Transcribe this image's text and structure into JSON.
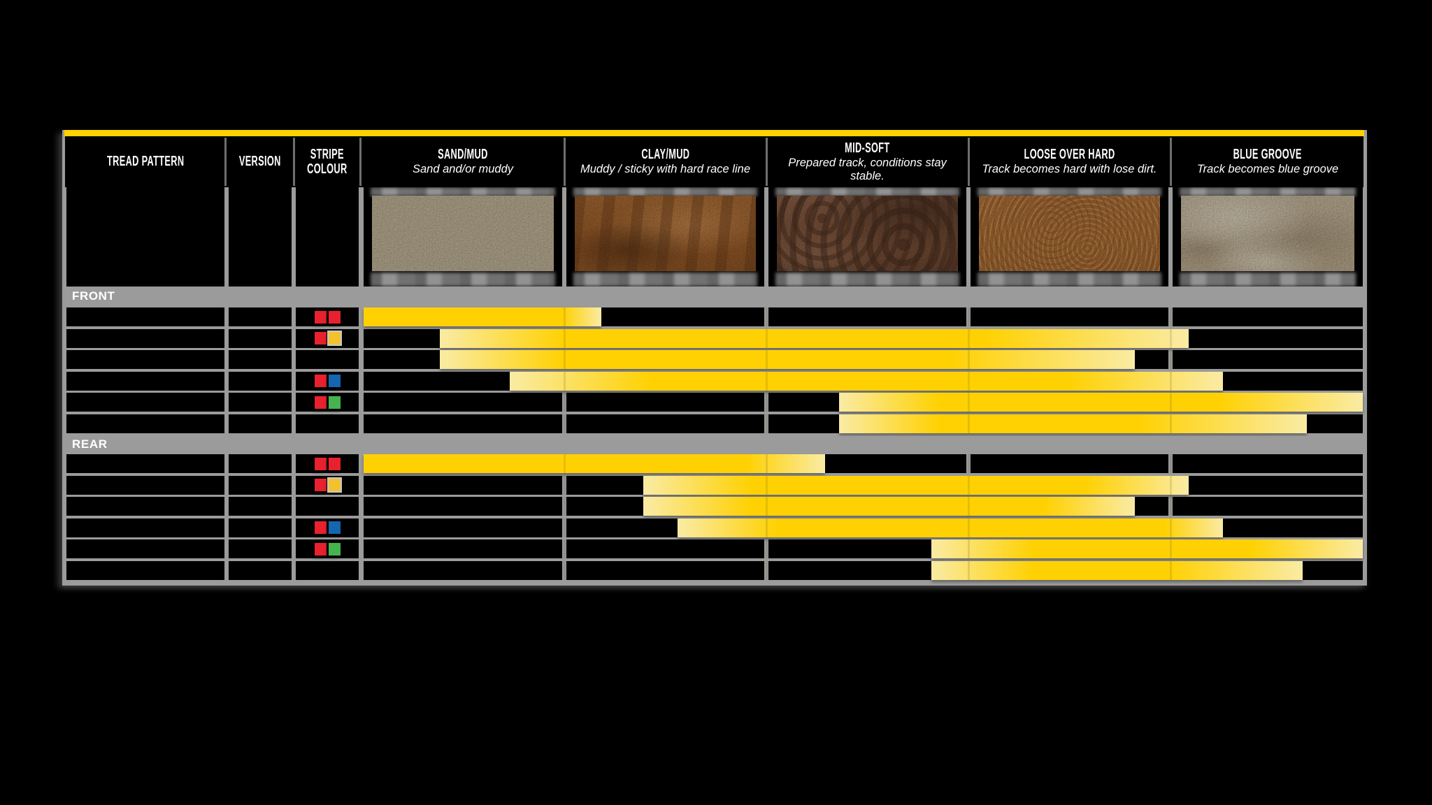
{
  "page": {
    "background": "#000000"
  },
  "board": {
    "accent_color": "#FFD200",
    "grid_color": "#9B9B9B",
    "header": {
      "columns": [
        {
          "id": "tread",
          "title": "TREAD PATTERN",
          "subtitle": ""
        },
        {
          "id": "version",
          "title": "VERSION",
          "subtitle": ""
        },
        {
          "id": "stripe",
          "title": "STRIPE\nCOLOUR",
          "subtitle": ""
        },
        {
          "id": "sand",
          "title": "SAND/MUD",
          "subtitle": "Sand and/or muddy"
        },
        {
          "id": "clay",
          "title": "CLAY/MUD",
          "subtitle": "Muddy / sticky with hard race line"
        },
        {
          "id": "mid",
          "title": "MID-SOFT",
          "subtitle": "Prepared track, conditions stay stable."
        },
        {
          "id": "loose",
          "title": "LOOSE OVER HARD",
          "subtitle": "Track becomes hard with lose dirt."
        },
        {
          "id": "blue",
          "title": "BLUE GROOVE",
          "subtitle": "Track becomes blue groove"
        }
      ]
    },
    "terrain_photos": [
      {
        "id": "sand",
        "name": "sand-dunes-photo",
        "palette": [
          "#C8BBA0",
          "#8D8066",
          "#E9E0CB"
        ]
      },
      {
        "id": "clay",
        "name": "muddy-clay-ruts-photo",
        "palette": [
          "#A4632D",
          "#6E3E1B",
          "#C98A4E"
        ]
      },
      {
        "id": "mid",
        "name": "soft-soil-clumps-photo",
        "palette": [
          "#8A5F46",
          "#5E3E2C",
          "#A87C5E"
        ]
      },
      {
        "id": "loose",
        "name": "loose-dirt-gravel-photo",
        "palette": [
          "#B5763C",
          "#8A4F22",
          "#D9A368"
        ]
      },
      {
        "id": "blue",
        "name": "hardpack-blue-groove-photo",
        "palette": [
          "#C4B59B",
          "#DCD2BC",
          "#9F8F74"
        ]
      }
    ],
    "stripe_palette": {
      "red": "#E8212E",
      "yellow": "#F2C12E",
      "blue": "#1566B0",
      "green": "#45B44E"
    },
    "bar_colors": {
      "solid": "#FFD103",
      "pale": "#FAEBA4"
    }
  },
  "chart_data": {
    "type": "bar",
    "subtype": "horizontal-range-bars (tyre suitability across track conditions)",
    "title": "",
    "axis_categories": [
      "SAND/MUD",
      "CLAY/MUD",
      "MID-SOFT",
      "LOOSE OVER HARD",
      "BLUE GROOVE"
    ],
    "units": "terrain-column index: 0 = left edge of SAND/MUD, 5 = right edge of BLUE GROOVE; full_from/full_to mark the solid-yellow span, start/end include the faded tails",
    "legend_position": "none",
    "grid": true,
    "sections": [
      {
        "label": "FRONT",
        "rows": [
          {
            "stripe_colours": [
              "red",
              "red"
            ],
            "range": {
              "start": 0.0,
              "full_from": 0.0,
              "full_to": 1.0,
              "end": 1.19
            }
          },
          {
            "stripe_colours": [
              "red",
              "yellow"
            ],
            "range": {
              "start": 0.38,
              "full_from": 1.0,
              "full_to": 3.11,
              "end": 4.13
            }
          },
          {
            "stripe_colours": [],
            "range": {
              "start": 0.38,
              "full_from": 1.0,
              "full_to": 2.94,
              "end": 3.86
            }
          },
          {
            "stripe_colours": [
              "red",
              "blue"
            ],
            "range": {
              "start": 0.73,
              "full_from": 1.44,
              "full_to": 3.53,
              "end": 4.3
            }
          },
          {
            "stripe_colours": [
              "red",
              "green"
            ],
            "range": {
              "start": 2.38,
              "full_from": 2.88,
              "full_to": 4.28,
              "end": 5.0
            }
          },
          {
            "stripe_colours": [],
            "range": {
              "start": 2.38,
              "full_from": 2.88,
              "full_to": 3.88,
              "end": 4.72
            }
          }
        ]
      },
      {
        "label": "REAR",
        "rows": [
          {
            "stripe_colours": [
              "red",
              "red"
            ],
            "range": {
              "start": 0.0,
              "full_from": 0.0,
              "full_to": 1.92,
              "end": 2.31
            }
          },
          {
            "stripe_colours": [
              "red",
              "yellow"
            ],
            "range": {
              "start": 1.4,
              "full_from": 1.94,
              "full_to": 3.61,
              "end": 4.13
            }
          },
          {
            "stripe_colours": [],
            "range": {
              "start": 1.4,
              "full_from": 1.94,
              "full_to": 3.41,
              "end": 3.86
            }
          },
          {
            "stripe_colours": [
              "red",
              "blue"
            ],
            "range": {
              "start": 1.57,
              "full_from": 2.07,
              "full_to": 4.01,
              "end": 4.3
            }
          },
          {
            "stripe_colours": [
              "red",
              "green"
            ],
            "range": {
              "start": 2.84,
              "full_from": 3.35,
              "full_to": 4.44,
              "end": 5.0
            }
          },
          {
            "stripe_colours": [],
            "range": {
              "start": 2.84,
              "full_from": 3.35,
              "full_to": 4.03,
              "end": 4.7
            }
          }
        ]
      }
    ]
  }
}
